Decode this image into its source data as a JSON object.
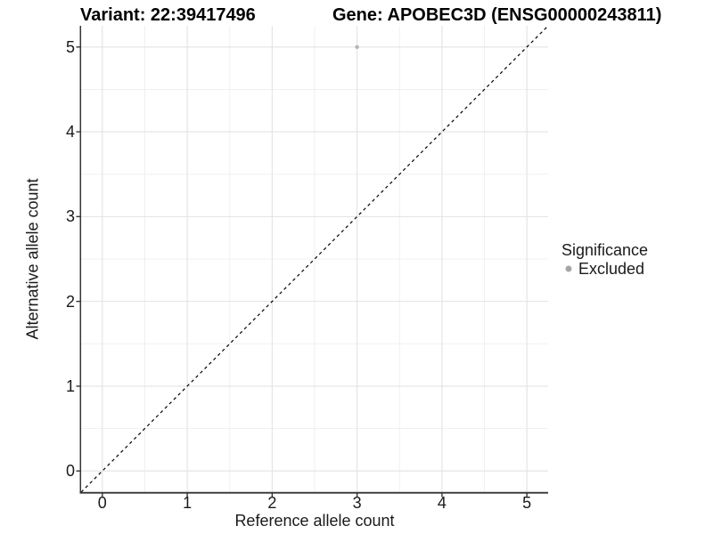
{
  "chart_data": {
    "type": "scatter",
    "title_left": "Variant: 22:39417496",
    "title_right": "Gene: APOBEC3D (ENSG00000243811)",
    "xlabel": "Reference allele count",
    "ylabel": "Alternative allele count",
    "xlim": [
      -0.25,
      5.25
    ],
    "ylim": [
      -0.25,
      5.25
    ],
    "x_ticks": [
      0,
      1,
      2,
      3,
      4,
      5
    ],
    "y_ticks": [
      0,
      1,
      2,
      3,
      4,
      5
    ],
    "x_minor": [
      0.5,
      1.5,
      2.5,
      3.5,
      4.5
    ],
    "y_minor": [
      0.5,
      1.5,
      2.5,
      3.5,
      4.5
    ],
    "grid": true,
    "points": [
      {
        "x": 3,
        "y": 5,
        "series": "Excluded"
      }
    ],
    "reference_line": {
      "slope": 1,
      "intercept": 0,
      "linetype": "dashed",
      "color": "#000000"
    },
    "legend": {
      "title": "Significance",
      "position": "right",
      "items": [
        {
          "label": "Excluded",
          "color": "#a6a6a6",
          "shape": "circle"
        }
      ]
    }
  },
  "colors": {
    "background": "#ffffff",
    "grid_major": "#e3e3e3",
    "grid_minor": "#f0f0f0",
    "axis_line": "#333333",
    "tick_mark": "#333333",
    "point_fill": "#b5b5b5"
  }
}
